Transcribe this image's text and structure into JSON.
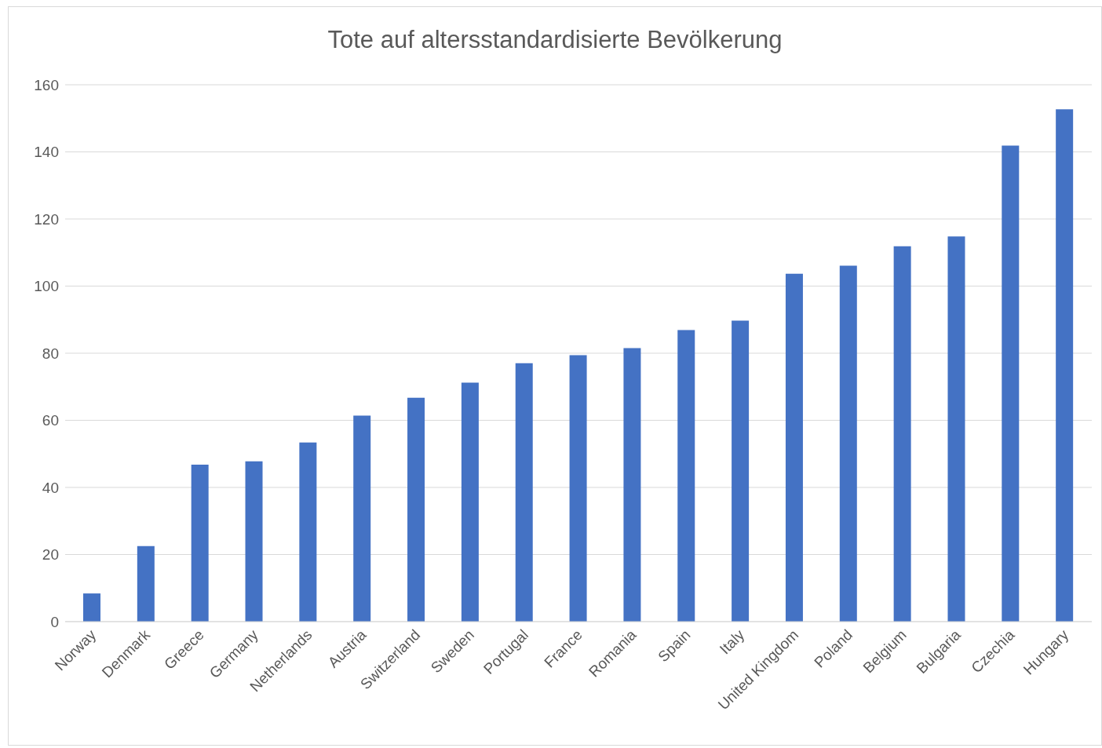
{
  "chart_data": {
    "type": "bar",
    "title": "Tote auf altersstandardisierte Bevölkerung",
    "categories": [
      "Norway",
      "Denmark",
      "Greece",
      "Germany",
      "Netherlands",
      "Austria",
      "Switzerland",
      "Sweden",
      "Portugal",
      "France",
      "Romania",
      "Spain",
      "Italy",
      "United Kingdom",
      "Poland",
      "Belgium",
      "Bulgaria",
      "Czechia",
      "Hungary"
    ],
    "values": [
      8.4,
      22.5,
      46.8,
      47.8,
      53.4,
      61.4,
      66.7,
      71.2,
      77.0,
      79.4,
      81.5,
      86.9,
      89.7,
      103.7,
      106.1,
      111.9,
      114.8,
      141.9,
      152.7
    ],
    "color": "#4472c4",
    "ylim": [
      0,
      160
    ],
    "yticks": [
      0,
      20,
      40,
      60,
      80,
      100,
      120,
      140,
      160
    ],
    "grid": "y"
  }
}
